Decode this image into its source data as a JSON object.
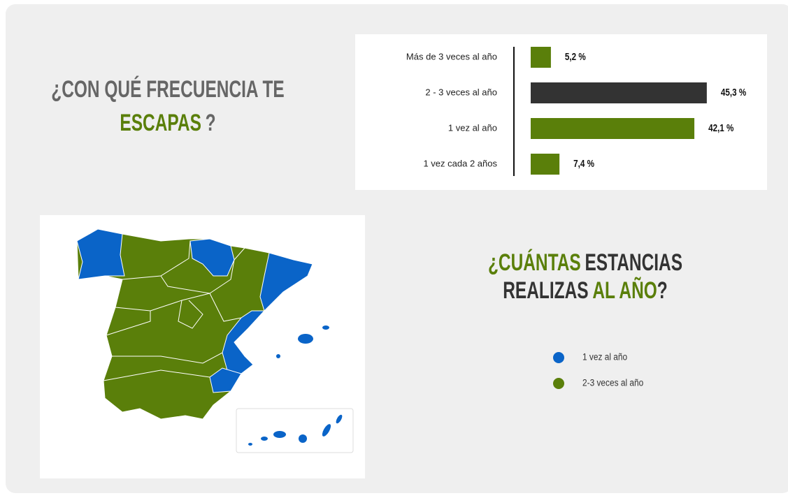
{
  "chart_data": {
    "type": "bar",
    "orientation": "horizontal",
    "title_parts": [
      "¿CON QUÉ FRECUENCIA TE",
      "ESCAPAS",
      "?"
    ],
    "categories": [
      "Más de 3 veces al año",
      "2 - 3 veces al año",
      "1 vez al año",
      "1 vez cada 2 años"
    ],
    "values": [
      5.2,
      45.3,
      42.1,
      7.4
    ],
    "value_labels": [
      "5,2 %",
      "45,3 %",
      "42,1 %",
      "7,4 %"
    ],
    "colors": [
      "#5a7f0a",
      "#333333",
      "#5a7f0a",
      "#5a7f0a"
    ]
  },
  "map": {
    "title_parts": [
      "¿CUÁNTAS",
      "ESTANCIAS",
      "REALIZAS",
      "AL AÑO",
      "?"
    ],
    "legend": [
      {
        "label": "1 vez al año",
        "color": "#0a64c8"
      },
      {
        "label": "2-3 veces al año",
        "color": "#5a7f0a"
      }
    ]
  }
}
